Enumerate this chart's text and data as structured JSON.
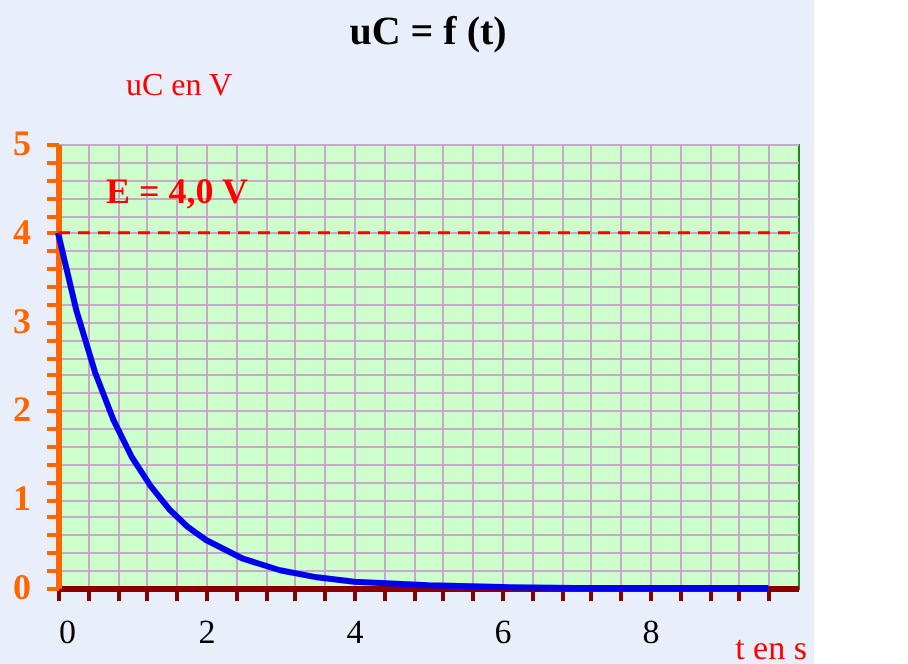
{
  "chart_data": {
    "type": "line",
    "title": "uC = f (t)",
    "xlabel": "t en s",
    "ylabel": "uC en V",
    "x": [
      0,
      0.25,
      0.5,
      0.75,
      1,
      1.25,
      1.5,
      1.75,
      2,
      2.5,
      3,
      3.5,
      4,
      5,
      6,
      7,
      8,
      9,
      9.6
    ],
    "series": [
      {
        "color": "#0000ee",
        "values": [
          4.0,
          3.12,
          2.43,
          1.89,
          1.47,
          1.15,
          0.89,
          0.69,
          0.54,
          0.33,
          0.2,
          0.12,
          0.07,
          0.03,
          0.01,
          0,
          0,
          0,
          0
        ]
      }
    ],
    "xlim": [
      0,
      10
    ],
    "xticks": [
      0,
      {
        "value": 0.4,
        "label": null
      },
      {
        "value": 0.8,
        "label": null
      },
      {
        "value": 1.2,
        "label": null
      },
      {
        "value": 1.6,
        "label": null
      },
      2,
      {
        "value": 2.4,
        "label": null
      },
      {
        "value": 2.8,
        "label": null
      },
      {
        "value": 3.2,
        "label": null
      },
      {
        "value": 3.6,
        "label": null
      },
      4,
      {
        "value": 4.4,
        "label": null
      },
      {
        "value": 4.8,
        "label": null
      },
      {
        "value": 5.2,
        "label": null
      },
      {
        "value": 5.6,
        "label": null
      },
      6,
      {
        "value": 6.4,
        "label": null
      },
      {
        "value": 6.8,
        "label": null
      },
      {
        "value": 7.2,
        "label": null
      },
      {
        "value": 7.6,
        "label": null
      },
      8,
      {
        "value": 8.4,
        "label": null
      },
      {
        "value": 8.8,
        "label": null
      },
      {
        "value": 9.2,
        "label": null
      },
      {
        "value": 9.6,
        "label": null
      }
    ],
    "ylim": [
      0,
      5
    ],
    "yticks": [
      0,
      {
        "value": 0.2,
        "label": null
      },
      {
        "value": 0.4,
        "label": null
      },
      {
        "value": 0.6,
        "label": null
      },
      {
        "value": 0.8,
        "label": null
      },
      1,
      {
        "value": 1.2,
        "label": null
      },
      {
        "value": 1.4,
        "label": null
      },
      {
        "value": 1.6,
        "label": null
      },
      {
        "value": 1.8,
        "label": null
      },
      2,
      {
        "value": 2.2,
        "label": null
      },
      {
        "value": 2.4,
        "label": null
      },
      {
        "value": 2.6,
        "label": null
      },
      {
        "value": 2.8,
        "label": null
      },
      3,
      {
        "value": 3.2,
        "label": null
      },
      {
        "value": 3.4,
        "label": null
      },
      {
        "value": 3.6,
        "label": null
      },
      {
        "value": 3.8,
        "label": null
      },
      4,
      {
        "value": 4.2,
        "label": null
      },
      {
        "value": 4.4,
        "label": null
      },
      {
        "value": 4.6,
        "label": null
      },
      {
        "value": 4.8,
        "label": null
      },
      5
    ],
    "ref_lines": [
      {
        "axis": "y",
        "value": 4,
        "label": "E = 4,0 V",
        "color": "#ff0000",
        "line_style": "dashed"
      }
    ],
    "grid": true,
    "marker": "none",
    "line_style": "solid"
  }
}
